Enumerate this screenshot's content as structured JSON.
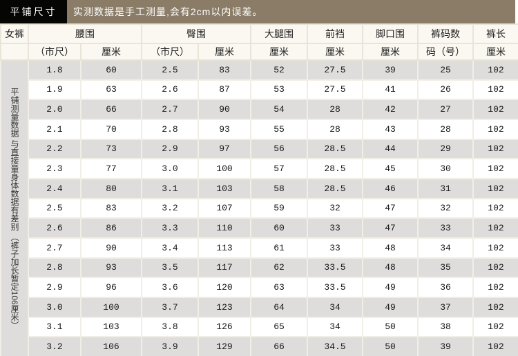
{
  "banner": {
    "label": "平铺尺寸",
    "note": "实测数据是手工测量,会有2cm以内误差。"
  },
  "table": {
    "header": {
      "product": "女裤",
      "top": [
        "腰围",
        "臀围",
        "大腿围",
        "前裆",
        "脚口围",
        "裤码数",
        "裤长"
      ],
      "sub": [
        "（市尺）",
        "厘米",
        "（市尺）",
        "厘米",
        "厘米",
        "厘米",
        "厘米",
        "码（号）",
        "厘米"
      ]
    },
    "side_note": "平铺测量数据 与直接量身体数据有差别 （裤子加长暂定106厘米）",
    "rows": [
      [
        "1.8",
        "60",
        "2.5",
        "83",
        "52",
        "27.5",
        "39",
        "25",
        "102"
      ],
      [
        "1.9",
        "63",
        "2.6",
        "87",
        "53",
        "27.5",
        "41",
        "26",
        "102"
      ],
      [
        "2.0",
        "66",
        "2.7",
        "90",
        "54",
        "28",
        "42",
        "27",
        "102"
      ],
      [
        "2.1",
        "70",
        "2.8",
        "93",
        "55",
        "28",
        "43",
        "28",
        "102"
      ],
      [
        "2.2",
        "73",
        "2.9",
        "97",
        "56",
        "28.5",
        "44",
        "29",
        "102"
      ],
      [
        "2.3",
        "77",
        "3.0",
        "100",
        "57",
        "28.5",
        "45",
        "30",
        "102"
      ],
      [
        "2.4",
        "80",
        "3.1",
        "103",
        "58",
        "28.5",
        "46",
        "31",
        "102"
      ],
      [
        "2.5",
        "83",
        "3.2",
        "107",
        "59",
        "32",
        "47",
        "32",
        "102"
      ],
      [
        "2.6",
        "86",
        "3.3",
        "110",
        "60",
        "33",
        "47",
        "33",
        "102"
      ],
      [
        "2.7",
        "90",
        "3.4",
        "113",
        "61",
        "33",
        "48",
        "34",
        "102"
      ],
      [
        "2.8",
        "93",
        "3.5",
        "117",
        "62",
        "33.5",
        "48",
        "35",
        "102"
      ],
      [
        "2.9",
        "96",
        "3.6",
        "120",
        "63",
        "33.5",
        "49",
        "36",
        "102"
      ],
      [
        "3.0",
        "100",
        "3.7",
        "123",
        "64",
        "34",
        "49",
        "37",
        "102"
      ],
      [
        "3.1",
        "103",
        "3.8",
        "126",
        "65",
        "34",
        "50",
        "38",
        "102"
      ],
      [
        "3.2",
        "106",
        "3.9",
        "129",
        "66",
        "34.5",
        "50",
        "39",
        "102"
      ]
    ]
  },
  "colors": {
    "banner_label_bg": "#050503",
    "banner_note_bg": "#8a7c66",
    "stripe_gray": "#dedddc",
    "header_bg": "#faf8f1"
  }
}
